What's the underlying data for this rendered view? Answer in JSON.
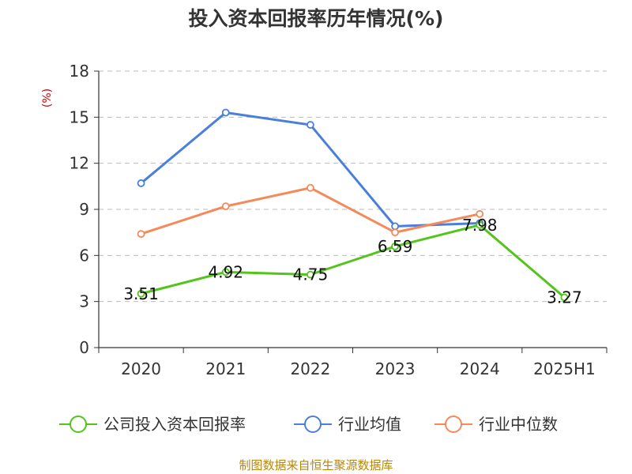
{
  "title": "投入资本回报率历年情况(%)",
  "unit": "(%)",
  "source": "制图数据来自恒生聚源数据库",
  "chart_data": {
    "type": "line",
    "title": "投入资本回报率历年情况(%)",
    "ylabel": "(%)",
    "categories": [
      "2020",
      "2021",
      "2022",
      "2023",
      "2024",
      "2025H1"
    ],
    "ylim": [
      0,
      18
    ],
    "yticks": [
      0,
      3,
      6,
      9,
      12,
      15,
      18
    ],
    "grid": true,
    "legend_position": "bottom",
    "series": [
      {
        "name": "公司投入资本回报率",
        "color": "#52c41a",
        "values": [
          3.51,
          4.92,
          4.75,
          6.59,
          7.98,
          3.27
        ],
        "labels": [
          "3.51",
          "4.92",
          "4.75",
          "6.59",
          "7.98",
          "3.27"
        ]
      },
      {
        "name": "行业均值",
        "color": "#4a7fdb",
        "values": [
          10.7,
          15.3,
          14.5,
          7.9,
          8.1,
          null
        ]
      },
      {
        "name": "行业中位数",
        "color": "#f5895a",
        "values": [
          7.4,
          9.2,
          10.4,
          7.5,
          8.7,
          null
        ]
      }
    ]
  }
}
